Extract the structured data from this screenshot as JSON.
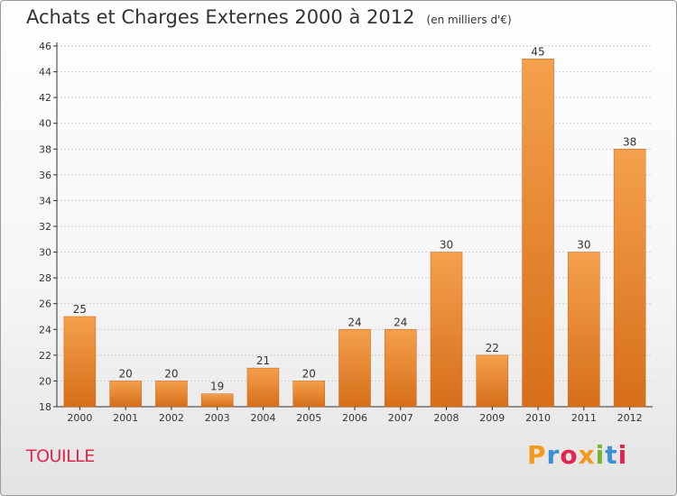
{
  "title": "Achats et Charges Externes 2000 à 2012",
  "unit": "(en milliers d'€)",
  "commune": "TOUILLE",
  "logo": {
    "text": "Proxiti",
    "colors": [
      "#f39a1c",
      "#3a8fd6",
      "#e0264f",
      "#76b52a"
    ]
  },
  "colors": {
    "bar_top": "#f5a04c",
    "bar_bottom": "#d66e1a",
    "bar_stroke": "#c86316",
    "grid": "#cfcfcf",
    "axis": "#333333",
    "text": "#333333"
  },
  "chart_data": {
    "type": "bar",
    "title": "Achats et Charges Externes 2000 à 2012",
    "ylabel": "",
    "xlabel": "",
    "categories": [
      "2000",
      "2001",
      "2002",
      "2003",
      "2004",
      "2005",
      "2006",
      "2007",
      "2008",
      "2009",
      "2010",
      "2011",
      "2012"
    ],
    "values": [
      25,
      20,
      20,
      19,
      21,
      20,
      24,
      24,
      30,
      22,
      45,
      30,
      38
    ],
    "ylim": [
      18,
      46
    ],
    "yticks": [
      18,
      20,
      22,
      24,
      26,
      28,
      30,
      32,
      34,
      36,
      38,
      40,
      42,
      44,
      46
    ],
    "grid": true
  }
}
